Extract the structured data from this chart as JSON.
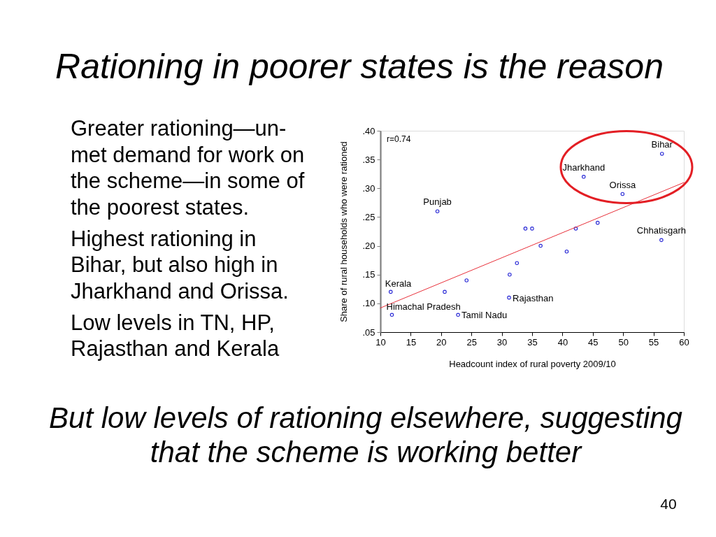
{
  "chart_data": {
    "type": "scatter",
    "title": "Rationing in poorer states is the reason",
    "xlabel": "Headcount index of rural poverty 2009/10",
    "ylabel": "Share of rural households who were rationed",
    "xlim": [
      10,
      60
    ],
    "xticks": [
      10,
      15,
      20,
      25,
      30,
      35,
      40,
      45,
      50,
      55,
      60
    ],
    "ylim": [
      0.05,
      0.4
    ],
    "yticks": [
      {
        "value": 0.05,
        "label": ".05"
      },
      {
        "value": 0.1,
        "label": ".10"
      },
      {
        "value": 0.15,
        "label": ".15"
      },
      {
        "value": 0.2,
        "label": ".20"
      },
      {
        "value": 0.25,
        "label": ".25"
      },
      {
        "value": 0.3,
        "label": ".30"
      },
      {
        "value": 0.35,
        "label": ".35"
      },
      {
        "value": 0.4,
        "label": ".40"
      }
    ],
    "series": [
      {
        "color": "#2b2bd6",
        "marker": "circle",
        "x": [
          11.7,
          11.9,
          19.4,
          20.6,
          22.8,
          24.2,
          31.2,
          31.3,
          32.5,
          33.9,
          35.0,
          36.4,
          40.7,
          42.2,
          43.5,
          45.8,
          49.9,
          56.3,
          56.4
        ],
        "values": [
          0.12,
          0.08,
          0.26,
          0.12,
          0.08,
          0.14,
          0.11,
          0.15,
          0.17,
          0.23,
          0.23,
          0.2,
          0.19,
          0.23,
          0.32,
          0.24,
          0.29,
          0.21,
          0.36
        ]
      },
      {
        "type": "line",
        "color": "#e8303a",
        "x": [
          10,
          60
        ],
        "values": [
          0.092,
          0.31
        ]
      }
    ],
    "annotations": [
      "Greater rationing—un-met demand for work on the scheme—in some of the poorest states.",
      "Highest rationing in Bihar, but also high in Jharkhand and Orissa.",
      "Low levels in TN, HP, Rajasthan and Kerala",
      "r=0.74",
      "But low levels of rationing elsewhere, suggesting that the scheme is working better",
      "40",
      {
        "text": "Bihar",
        "x": 56.4,
        "y": 0.36
      },
      {
        "text": "Jharkhand",
        "x": 43.5,
        "y": 0.32
      },
      {
        "text": "Orissa",
        "x": 49.9,
        "y": 0.29
      },
      {
        "text": "Punjab",
        "x": 19.4,
        "y": 0.26
      },
      {
        "text": "Chhatisgarh",
        "x": 56.3,
        "y": 0.21
      },
      {
        "text": "Kerala",
        "x": 11.7,
        "y": 0.12
      },
      {
        "text": "Himachal Pradesh",
        "x": 11.9,
        "y": 0.08
      },
      {
        "text": "Rajasthan",
        "x": 31.2,
        "y": 0.11
      },
      {
        "text": "Tamil Nadu",
        "x": 22.8,
        "y": 0.08
      }
    ]
  }
}
